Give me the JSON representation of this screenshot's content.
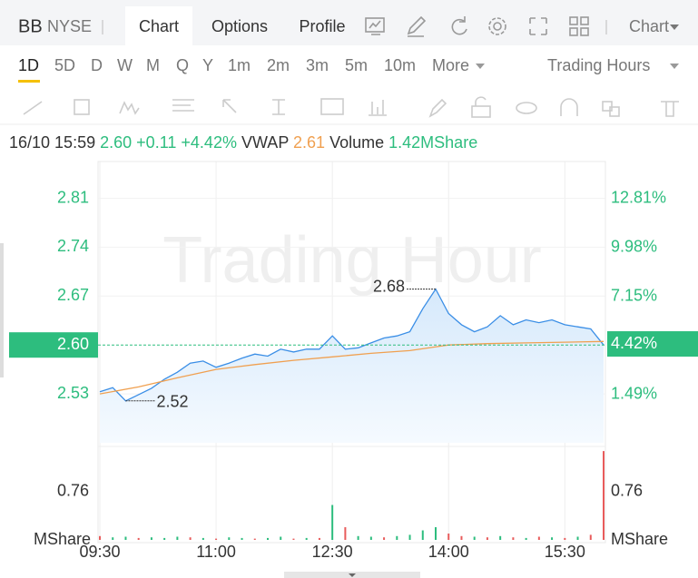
{
  "header": {
    "symbol": "BB",
    "exchange": "NYSE",
    "tabs": [
      "Chart",
      "Options",
      "Profile"
    ],
    "active_tab": "Chart",
    "menu": "Chart"
  },
  "periods": {
    "items": [
      "1D",
      "5D",
      "D",
      "W",
      "M",
      "Q",
      "Y",
      "1m",
      "2m",
      "3m",
      "5m",
      "10m",
      "More"
    ],
    "active": "1D",
    "session": "Trading Hours"
  },
  "quote": {
    "time": "16/10 15:59",
    "price": "2.60",
    "change": "+0.11",
    "change_pct": "+4.42%",
    "vwap_label": "VWAP",
    "vwap": "2.61",
    "volume_label": "Volume",
    "volume": "1.42MShare"
  },
  "chart_data": {
    "type": "line",
    "watermark": "Trading Hour",
    "grid": true,
    "xlim": [
      0,
      390
    ],
    "xticks": [
      {
        "value": 0,
        "label": "09:30"
      },
      {
        "value": 90,
        "label": "11:00"
      },
      {
        "value": 180,
        "label": "12:30"
      },
      {
        "value": 270,
        "label": "14:00"
      },
      {
        "value": 360,
        "label": "15:30"
      }
    ],
    "ylim": [
      2.46,
      2.86
    ],
    "yticks": [
      2.81,
      2.74,
      2.67,
      {
        "value": 2.6,
        "label": "2.60"
      },
      2.53
    ],
    "y2lim": [
      -1.29,
      14.85
    ],
    "y2ticks": [
      {
        "value": 12.81,
        "label": "12.81%"
      },
      {
        "value": 9.98,
        "label": "9.98%"
      },
      {
        "value": 7.15,
        "label": "7.15%"
      },
      {
        "value": 4.42,
        "label": "4.42%"
      },
      {
        "value": 1.49,
        "label": "1.49%"
      }
    ],
    "current_price": 2.6,
    "series": [
      {
        "color": "#3a8ee6",
        "fill": true,
        "x": [
          0,
          10,
          20,
          30,
          40,
          50,
          60,
          70,
          80,
          90,
          100,
          110,
          120,
          130,
          140,
          150,
          160,
          170,
          180,
          190,
          200,
          210,
          220,
          230,
          240,
          250,
          260,
          270,
          280,
          290,
          300,
          310,
          320,
          330,
          340,
          350,
          360,
          370,
          380,
          390
        ],
        "values": [
          2.533,
          2.539,
          2.52,
          2.529,
          2.538,
          2.551,
          2.561,
          2.574,
          2.577,
          2.568,
          2.574,
          2.581,
          2.587,
          2.584,
          2.594,
          2.59,
          2.594,
          2.594,
          2.613,
          2.594,
          2.596,
          2.603,
          2.61,
          2.613,
          2.619,
          2.652,
          2.68,
          2.645,
          2.629,
          2.619,
          2.626,
          2.642,
          2.629,
          2.636,
          2.632,
          2.636,
          2.629,
          2.626,
          2.623,
          2.6
        ]
      },
      {
        "color": "#f0a050",
        "fill": false,
        "x": [
          0,
          30,
          60,
          90,
          120,
          150,
          180,
          210,
          240,
          270,
          300,
          330,
          360,
          390
        ],
        "values": [
          2.53,
          2.54,
          2.553,
          2.565,
          2.572,
          2.578,
          2.583,
          2.588,
          2.592,
          2.6,
          2.602,
          2.603,
          2.604,
          2.605
        ]
      }
    ],
    "annotations": [
      {
        "x": 260,
        "value": 2.68,
        "label": "2.68",
        "side": "left"
      },
      {
        "x": 20,
        "value": 2.52,
        "label": "2.52",
        "side": "right"
      }
    ],
    "volume": {
      "unit_label": "MShare",
      "ylim": [
        0,
        1.43
      ],
      "yticks": [
        0.76
      ],
      "x": [
        0,
        10,
        20,
        30,
        40,
        50,
        60,
        70,
        80,
        90,
        100,
        110,
        120,
        130,
        140,
        150,
        160,
        170,
        180,
        190,
        200,
        210,
        220,
        230,
        240,
        250,
        260,
        270,
        280,
        290,
        300,
        310,
        320,
        330,
        340,
        350,
        360,
        370,
        380,
        390
      ],
      "values": [
        0.06,
        0.04,
        0.05,
        0.03,
        0.04,
        0.03,
        0.05,
        0.04,
        0.03,
        0.02,
        0.04,
        0.03,
        0.02,
        0.03,
        0.05,
        0.02,
        0.03,
        0.03,
        0.55,
        0.2,
        0.06,
        0.05,
        0.04,
        0.06,
        0.08,
        0.15,
        0.2,
        0.1,
        0.06,
        0.05,
        0.04,
        0.06,
        0.04,
        0.03,
        0.05,
        0.04,
        0.03,
        0.05,
        0.08,
        1.4
      ],
      "colors": [
        "#e85c5c",
        "#2dbd7e",
        "#2dbd7e",
        "#e85c5c",
        "#2dbd7e",
        "#2dbd7e",
        "#2dbd7e",
        "#e85c5c",
        "#2dbd7e",
        "#e85c5c",
        "#2dbd7e",
        "#2dbd7e",
        "#e85c5c",
        "#2dbd7e",
        "#2dbd7e",
        "#e85c5c",
        "#2dbd7e",
        "#e85c5c",
        "#2dbd7e",
        "#e85c5c",
        "#2dbd7e",
        "#2dbd7e",
        "#e85c5c",
        "#2dbd7e",
        "#2dbd7e",
        "#2dbd7e",
        "#2dbd7e",
        "#e85c5c",
        "#e85c5c",
        "#2dbd7e",
        "#e85c5c",
        "#2dbd7e",
        "#e85c5c",
        "#2dbd7e",
        "#e85c5c",
        "#2dbd7e",
        "#e85c5c",
        "#2dbd7e",
        "#e85c5c",
        "#e85c5c"
      ]
    }
  }
}
